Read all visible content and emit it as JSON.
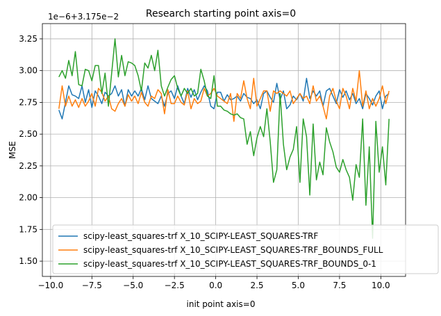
{
  "chart_data": {
    "type": "line",
    "title": "Research starting point axis=0",
    "xlabel": "init point axis=0",
    "ylabel": "MSE",
    "offset_label": "1e−6+3.175e−2",
    "xlim": [
      -10.5,
      11.5
    ],
    "ylim": [
      1.38,
      3.37
    ],
    "xticks": [
      -10,
      -7.5,
      -5,
      -2.5,
      0,
      2.5,
      5,
      7.5,
      10
    ],
    "xtick_labels": [
      "−10.0",
      "−7.5",
      "−5.0",
      "−2.5",
      "0.0",
      "2.5",
      "5.0",
      "7.5",
      "10.0"
    ],
    "yticks": [
      1.5,
      1.75,
      2.0,
      2.25,
      2.5,
      2.75,
      3.0,
      3.25
    ],
    "ytick_labels": [
      "1.50",
      "1.75",
      "2.00",
      "2.25",
      "2.50",
      "2.75",
      "3.00",
      "3.25"
    ],
    "grid": true,
    "legend_position": "lower-left",
    "x": [
      -9.5,
      -9.3,
      -9.1,
      -8.9,
      -8.7,
      -8.5,
      -8.3,
      -8.1,
      -7.9,
      -7.7,
      -7.5,
      -7.3,
      -7.1,
      -6.9,
      -6.7,
      -6.5,
      -6.3,
      -6.1,
      -5.9,
      -5.7,
      -5.5,
      -5.3,
      -5.1,
      -4.9,
      -4.7,
      -4.5,
      -4.3,
      -4.1,
      -3.9,
      -3.7,
      -3.5,
      -3.3,
      -3.1,
      -2.9,
      -2.7,
      -2.5,
      -2.3,
      -2.1,
      -1.9,
      -1.7,
      -1.5,
      -1.3,
      -1.1,
      -0.9,
      -0.7,
      -0.5,
      -0.3,
      -0.1,
      0.1,
      0.3,
      0.5,
      0.7,
      0.9,
      1.1,
      1.3,
      1.5,
      1.7,
      1.9,
      2.1,
      2.3,
      2.5,
      2.7,
      2.9,
      3.1,
      3.3,
      3.5,
      3.7,
      3.9,
      4.1,
      4.3,
      4.5,
      4.7,
      4.9,
      5.1,
      5.3,
      5.5,
      5.7,
      5.9,
      6.1,
      6.3,
      6.5,
      6.7,
      6.9,
      7.1,
      7.3,
      7.5,
      7.7,
      7.9,
      8.1,
      8.3,
      8.5,
      8.7,
      8.9,
      9.1,
      9.3,
      9.5,
      9.7,
      9.9,
      10.1,
      10.3,
      10.5
    ],
    "series": [
      {
        "name": "scipy-least_squares-trf X_10_SCIPY-LEAST_SQUARES-TRF",
        "color": "#1f77b4",
        "values": [
          2.69,
          2.62,
          2.75,
          2.88,
          2.81,
          2.8,
          2.78,
          2.88,
          2.75,
          2.85,
          2.71,
          2.84,
          2.8,
          2.74,
          2.83,
          2.8,
          2.82,
          2.88,
          2.8,
          2.85,
          2.72,
          2.85,
          2.8,
          2.84,
          2.8,
          2.86,
          2.77,
          2.88,
          2.78,
          2.76,
          2.74,
          2.8,
          2.72,
          2.82,
          2.84,
          2.78,
          2.88,
          2.8,
          2.74,
          2.86,
          2.79,
          2.85,
          2.77,
          2.83,
          2.88,
          2.84,
          2.72,
          2.7,
          2.83,
          2.83,
          2.76,
          2.81,
          2.77,
          2.78,
          2.8,
          2.76,
          2.82,
          2.79,
          2.78,
          2.74,
          2.77,
          2.7,
          2.82,
          2.84,
          2.79,
          2.75,
          2.9,
          2.77,
          2.84,
          2.7,
          2.73,
          2.8,
          2.77,
          2.82,
          2.76,
          2.94,
          2.78,
          2.84,
          2.8,
          2.84,
          2.72,
          2.84,
          2.86,
          2.8,
          2.74,
          2.85,
          2.79,
          2.84,
          2.77,
          2.82,
          2.74,
          2.78,
          2.7,
          2.82,
          2.78,
          2.73,
          2.8,
          2.84,
          2.7,
          2.8,
          2.82
        ]
      },
      {
        "name": "scipy-least_squares-trf X_10_SCIPY-LEAST_SQUARES-TRF_BOUNDS_FULL",
        "color": "#ff7f0e",
        "values": [
          2.7,
          2.88,
          2.72,
          2.8,
          2.72,
          2.77,
          2.71,
          2.78,
          2.72,
          2.76,
          2.82,
          2.72,
          2.86,
          2.83,
          2.76,
          2.8,
          2.7,
          2.68,
          2.74,
          2.78,
          2.72,
          2.81,
          2.76,
          2.8,
          2.74,
          2.83,
          2.75,
          2.72,
          2.8,
          2.78,
          2.85,
          2.82,
          2.66,
          2.85,
          2.74,
          2.74,
          2.8,
          2.75,
          2.73,
          2.84,
          2.7,
          2.78,
          2.74,
          2.76,
          2.86,
          2.8,
          2.82,
          2.86,
          2.8,
          2.78,
          2.76,
          2.74,
          2.82,
          2.6,
          2.82,
          2.78,
          2.92,
          2.78,
          2.7,
          2.94,
          2.72,
          2.78,
          2.84,
          2.84,
          2.68,
          2.84,
          2.82,
          2.84,
          2.82,
          2.8,
          2.84,
          2.74,
          2.78,
          2.82,
          2.78,
          2.8,
          2.74,
          2.88,
          2.76,
          2.8,
          2.72,
          2.62,
          2.8,
          2.86,
          2.76,
          2.7,
          2.86,
          2.8,
          2.7,
          2.86,
          2.76,
          3.0,
          2.72,
          2.84,
          2.7,
          2.78,
          2.72,
          2.78,
          2.88,
          2.74,
          2.84
        ]
      },
      {
        "name": "scipy-least_squares-trf X_10_SCIPY-LEAST_SQUARES-TRF_BOUNDS_0-1",
        "color": "#2ca02c",
        "values": [
          2.95,
          3.0,
          2.94,
          3.08,
          2.96,
          3.15,
          2.89,
          2.88,
          3.01,
          3.0,
          2.92,
          3.04,
          3.04,
          2.82,
          2.98,
          2.72,
          2.98,
          3.25,
          2.95,
          3.12,
          2.96,
          3.07,
          3.06,
          3.04,
          2.96,
          2.84,
          3.06,
          3.02,
          3.12,
          3.0,
          3.16,
          2.88,
          2.8,
          2.87,
          2.93,
          2.96,
          2.86,
          2.8,
          2.86,
          2.82,
          2.86,
          2.8,
          2.82,
          3.01,
          2.92,
          2.8,
          2.78,
          2.96,
          2.72,
          2.72,
          2.69,
          2.68,
          2.66,
          2.65,
          2.66,
          2.63,
          2.62,
          2.42,
          2.52,
          2.33,
          2.47,
          2.56,
          2.48,
          2.7,
          2.44,
          2.12,
          2.22,
          2.82,
          2.42,
          2.22,
          2.32,
          2.38,
          2.56,
          2.12,
          2.62,
          2.48,
          2.02,
          2.58,
          2.14,
          2.28,
          2.18,
          2.55,
          2.44,
          2.36,
          2.24,
          2.2,
          2.3,
          2.22,
          2.16,
          1.98,
          2.26,
          2.16,
          2.62,
          1.94,
          2.4,
          1.68,
          2.6,
          2.2,
          2.4,
          2.1,
          2.62
        ]
      }
    ]
  }
}
